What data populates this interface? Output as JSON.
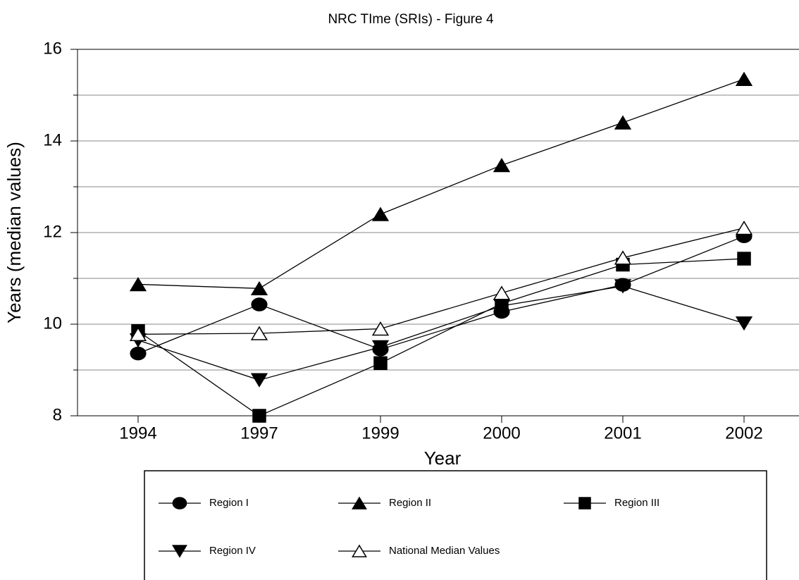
{
  "chart_data": {
    "type": "line",
    "title": "NRC TIme (SRIs) - Figure 4",
    "x_label": "Year",
    "y_label": "Years (median values)",
    "categories": [
      "1994",
      "1997",
      "1999",
      "2000",
      "2001",
      "2002"
    ],
    "series": [
      {
        "name": "Region I",
        "color": "#000000",
        "marker": "circle",
        "values": [
          9.36,
          10.43,
          9.45,
          10.27,
          10.86,
          11.92
        ]
      },
      {
        "name": "Region II",
        "color": "#000000",
        "marker": "triangle-up",
        "values": [
          10.87,
          10.78,
          12.4,
          13.47,
          14.4,
          15.35
        ]
      },
      {
        "name": "Region III",
        "color": "#000000",
        "marker": "square",
        "values": [
          9.85,
          8.0,
          9.15,
          10.45,
          11.3,
          11.43
        ]
      },
      {
        "name": "Region IV",
        "color": "#000000",
        "marker": "triangle-down",
        "values": [
          9.65,
          8.78,
          9.5,
          10.4,
          10.83,
          10.02
        ]
      },
      {
        "name": "National Median Values",
        "color": "#000000",
        "marker": "triangle-open",
        "values": [
          9.78,
          9.8,
          9.9,
          10.68,
          11.45,
          12.1
        ]
      }
    ],
    "ylim": [
      8,
      16
    ],
    "yticks": [
      8,
      10,
      12,
      14,
      16
    ],
    "yminor_ticks": [
      9,
      11,
      13,
      15
    ],
    "grid": true
  }
}
